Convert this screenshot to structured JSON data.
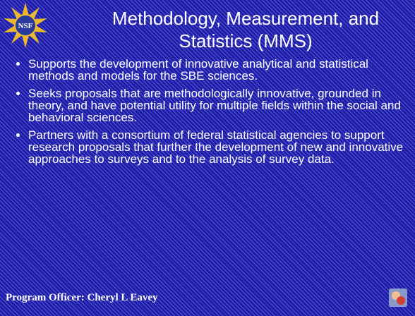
{
  "logo": {
    "text": "NSF"
  },
  "header": {
    "title_lines": [
      "Methodology, Measurement, and",
      "Statistics (MMS)"
    ]
  },
  "bullets": [
    "Supports the development of innovative analytical and statistical methods and models for the SBE sciences.",
    "Seeks proposals that are methodologically innovative, grounded in theory, and have potential utility for multiple fields within the social and behavioral sciences.",
    "Partners with a consortium of federal statistical agencies to support research proposals that further the development of new and innovative approaches to surveys and to the analysis of survey data."
  ],
  "footer": {
    "text": "Program Officer: Cheryl L Eavey"
  }
}
